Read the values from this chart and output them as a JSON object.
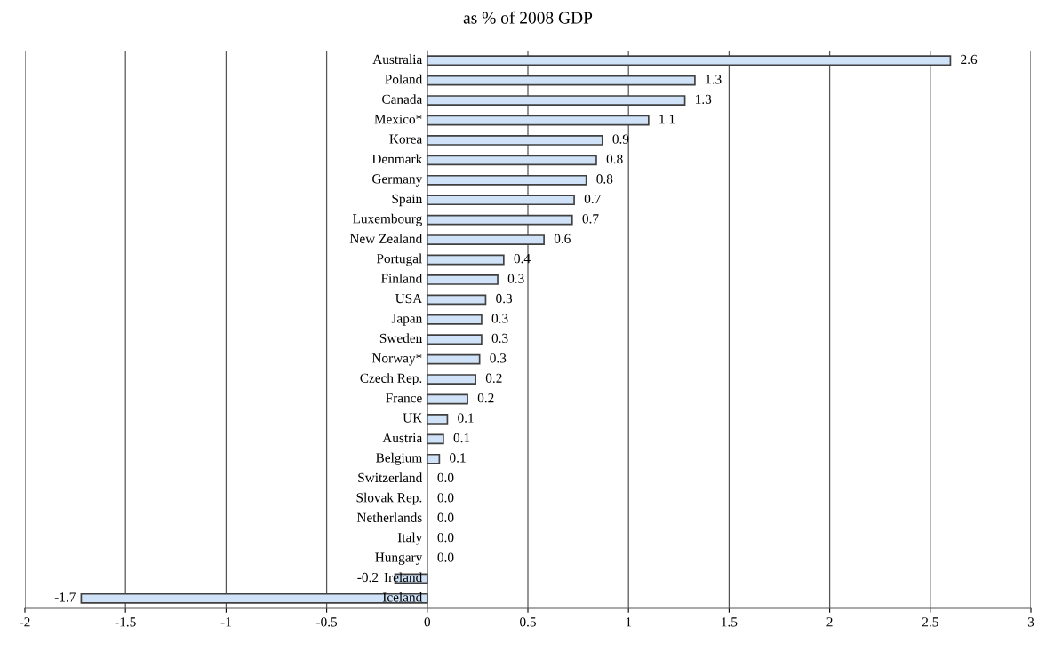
{
  "chart_data": {
    "type": "bar",
    "orientation": "horizontal",
    "title": "as % of 2008 GDP",
    "categories": [
      "Australia",
      "Poland",
      "Canada",
      "Mexico*",
      "Korea",
      "Denmark",
      "Germany",
      "Spain",
      "Luxembourg",
      "New Zealand",
      "Portugal",
      "Finland",
      "USA",
      "Japan",
      "Sweden",
      "Norway*",
      "Czech Rep.",
      "France",
      "UK",
      "Austria",
      "Belgium",
      "Switzerland",
      "Slovak Rep.",
      "Netherlands",
      "Italy",
      "Hungary",
      "Ireland",
      "Iceland"
    ],
    "values": [
      2.6,
      1.33,
      1.28,
      1.1,
      0.87,
      0.84,
      0.79,
      0.73,
      0.72,
      0.58,
      0.38,
      0.35,
      0.29,
      0.27,
      0.27,
      0.26,
      0.24,
      0.2,
      0.1,
      0.08,
      0.06,
      0,
      0,
      0,
      0,
      0,
      -0.16,
      -1.72
    ],
    "value_labels": [
      "2.6",
      "1.3",
      "1.3",
      "1.1",
      "0.9",
      "0.8",
      "0.8",
      "0.7",
      "0.7",
      "0.6",
      "0.4",
      "0.3",
      "0.3",
      "0.3",
      "0.3",
      "0.3",
      "0.2",
      "0.2",
      "0.1",
      "0.1",
      "0.1",
      "0.0",
      "0.0",
      "0.0",
      "0.0",
      "0.0",
      "-0.2",
      "-1.7"
    ],
    "color": "#cfe2f7",
    "xlim": [
      -2,
      3
    ],
    "xticks": [
      -2,
      -1.5,
      -1,
      -0.5,
      0,
      0.5,
      1,
      1.5,
      2,
      2.5,
      3
    ],
    "grid": "x",
    "legend": false
  }
}
